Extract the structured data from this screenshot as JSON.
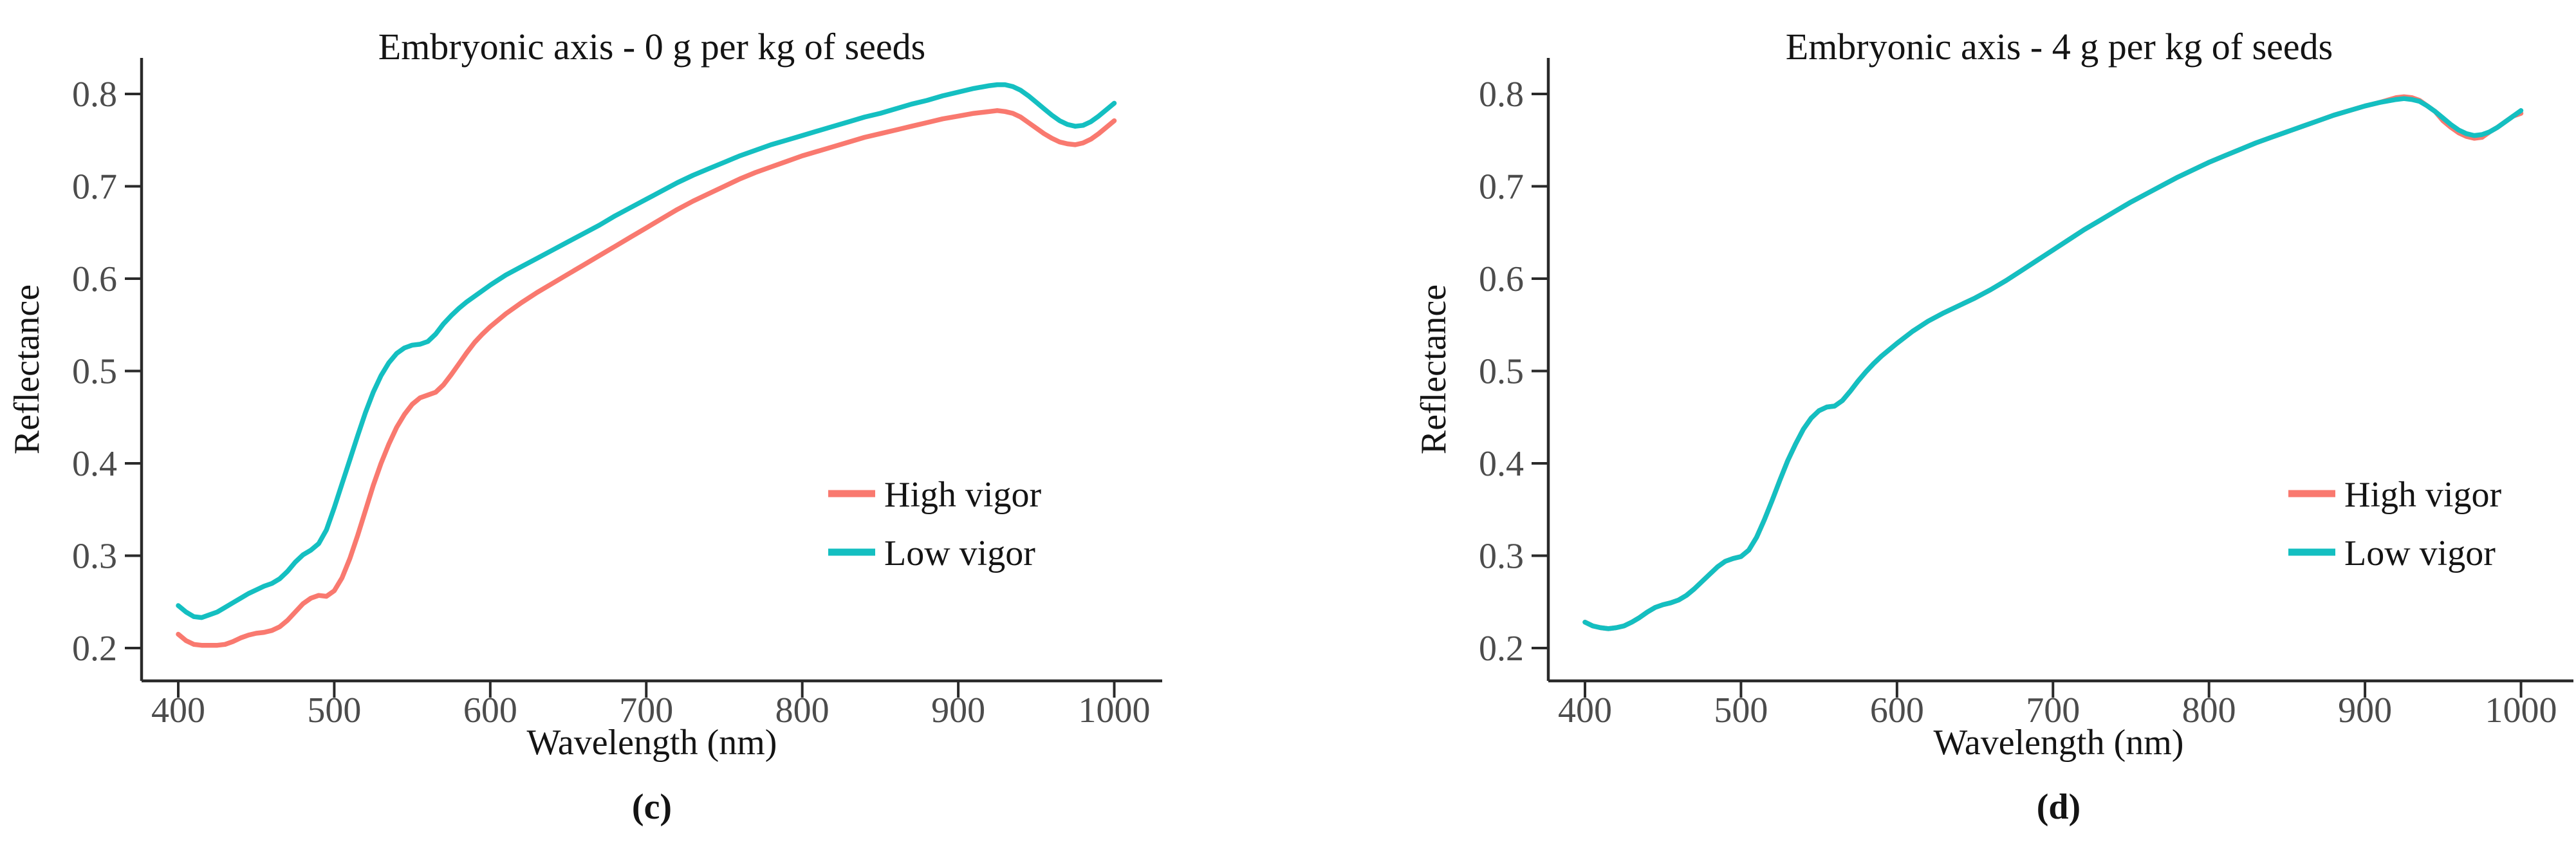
{
  "figure": {
    "background": "#ffffff",
    "text_color": "#141414",
    "tick_text_color": "#4c4c4c",
    "axis_color": "#2a2a2a"
  },
  "chart_data": [
    {
      "type": "line",
      "title": "Embryonic axis - 0 g per kg of seeds",
      "panel_label": "(c)",
      "xlabel": "Wavelength (nm)",
      "ylabel": "Reflectance",
      "xlim": [
        377,
        1030
      ],
      "ylim": [
        0.165,
        0.836
      ],
      "x_ticks": [
        400,
        500,
        600,
        700,
        800,
        900,
        1000
      ],
      "y_ticks": [
        0.2,
        0.3,
        0.4,
        0.5,
        0.6,
        0.7,
        0.8
      ],
      "grid": "off",
      "legend_position": "inside-right-middle",
      "x": [
        400,
        405,
        410,
        415,
        420,
        425,
        430,
        435,
        440,
        445,
        450,
        455,
        460,
        465,
        470,
        475,
        480,
        485,
        490,
        495,
        500,
        505,
        510,
        515,
        520,
        525,
        530,
        535,
        540,
        545,
        550,
        555,
        560,
        565,
        570,
        575,
        580,
        585,
        590,
        595,
        600,
        610,
        620,
        630,
        640,
        650,
        660,
        670,
        680,
        690,
        700,
        710,
        720,
        730,
        740,
        750,
        760,
        770,
        780,
        790,
        800,
        810,
        820,
        830,
        840,
        850,
        860,
        870,
        880,
        890,
        900,
        910,
        920,
        925,
        930,
        935,
        940,
        945,
        950,
        955,
        960,
        965,
        970,
        975,
        980,
        985,
        990,
        995,
        1000
      ],
      "series": [
        {
          "name": "High vigor",
          "color": "#F9796F",
          "values": [
            0.215,
            0.208,
            0.204,
            0.203,
            0.203,
            0.203,
            0.204,
            0.207,
            0.211,
            0.214,
            0.216,
            0.217,
            0.219,
            0.223,
            0.23,
            0.239,
            0.248,
            0.254,
            0.257,
            0.256,
            0.262,
            0.276,
            0.297,
            0.322,
            0.349,
            0.376,
            0.4,
            0.421,
            0.439,
            0.453,
            0.464,
            0.471,
            0.474,
            0.477,
            0.485,
            0.496,
            0.508,
            0.52,
            0.531,
            0.54,
            0.548,
            0.562,
            0.574,
            0.585,
            0.595,
            0.605,
            0.615,
            0.625,
            0.635,
            0.645,
            0.655,
            0.665,
            0.675,
            0.684,
            0.692,
            0.7,
            0.708,
            0.715,
            0.721,
            0.727,
            0.733,
            0.738,
            0.743,
            0.748,
            0.753,
            0.757,
            0.761,
            0.765,
            0.769,
            0.773,
            0.776,
            0.779,
            0.781,
            0.782,
            0.781,
            0.779,
            0.775,
            0.769,
            0.763,
            0.757,
            0.752,
            0.748,
            0.746,
            0.745,
            0.747,
            0.751,
            0.757,
            0.764,
            0.771
          ]
        },
        {
          "name": "Low vigor",
          "color": "#14BFC1",
          "values": [
            0.246,
            0.239,
            0.234,
            0.233,
            0.236,
            0.239,
            0.244,
            0.249,
            0.254,
            0.259,
            0.263,
            0.267,
            0.27,
            0.275,
            0.283,
            0.293,
            0.301,
            0.306,
            0.313,
            0.328,
            0.352,
            0.378,
            0.404,
            0.43,
            0.455,
            0.477,
            0.495,
            0.509,
            0.519,
            0.525,
            0.528,
            0.529,
            0.532,
            0.54,
            0.551,
            0.56,
            0.568,
            0.575,
            0.581,
            0.587,
            0.593,
            0.604,
            0.613,
            0.622,
            0.631,
            0.64,
            0.649,
            0.658,
            0.668,
            0.677,
            0.686,
            0.695,
            0.704,
            0.712,
            0.719,
            0.726,
            0.733,
            0.739,
            0.745,
            0.75,
            0.755,
            0.76,
            0.765,
            0.77,
            0.775,
            0.779,
            0.784,
            0.789,
            0.793,
            0.798,
            0.802,
            0.806,
            0.809,
            0.81,
            0.81,
            0.808,
            0.804,
            0.798,
            0.791,
            0.784,
            0.777,
            0.771,
            0.767,
            0.765,
            0.766,
            0.77,
            0.776,
            0.783,
            0.79
          ]
        }
      ]
    },
    {
      "type": "line",
      "title": "Embryonic axis - 4 g per kg of seeds",
      "panel_label": "(d)",
      "xlabel": "Wavelength (nm)",
      "ylabel": "Reflectance",
      "xlim": [
        377,
        1030
      ],
      "ylim": [
        0.165,
        0.836
      ],
      "x_ticks": [
        400,
        500,
        600,
        700,
        800,
        900,
        1000
      ],
      "y_ticks": [
        0.2,
        0.3,
        0.4,
        0.5,
        0.6,
        0.7,
        0.8
      ],
      "grid": "off",
      "legend_position": "inside-right-middle",
      "x": [
        400,
        405,
        410,
        415,
        420,
        425,
        430,
        435,
        440,
        445,
        450,
        455,
        460,
        465,
        470,
        475,
        480,
        485,
        490,
        495,
        500,
        505,
        510,
        515,
        520,
        525,
        530,
        535,
        540,
        545,
        550,
        555,
        560,
        565,
        570,
        575,
        580,
        585,
        590,
        595,
        600,
        610,
        620,
        630,
        640,
        650,
        660,
        670,
        680,
        690,
        700,
        710,
        720,
        730,
        740,
        750,
        760,
        770,
        780,
        790,
        800,
        810,
        820,
        830,
        840,
        850,
        860,
        870,
        880,
        890,
        900,
        910,
        920,
        925,
        930,
        935,
        940,
        945,
        950,
        955,
        960,
        965,
        970,
        975,
        980,
        985,
        990,
        995,
        1000
      ],
      "series": [
        {
          "name": "High vigor",
          "color": "#F9796F",
          "values": [
            0.228,
            0.224,
            0.222,
            0.221,
            0.222,
            0.224,
            0.228,
            0.233,
            0.239,
            0.244,
            0.247,
            0.249,
            0.252,
            0.257,
            0.264,
            0.272,
            0.28,
            0.288,
            0.294,
            0.297,
            0.299,
            0.306,
            0.32,
            0.339,
            0.36,
            0.382,
            0.403,
            0.421,
            0.437,
            0.449,
            0.457,
            0.461,
            0.462,
            0.468,
            0.478,
            0.489,
            0.499,
            0.508,
            0.516,
            0.523,
            0.53,
            0.543,
            0.554,
            0.563,
            0.571,
            0.579,
            0.588,
            0.598,
            0.609,
            0.62,
            0.631,
            0.642,
            0.653,
            0.663,
            0.673,
            0.683,
            0.692,
            0.701,
            0.71,
            0.718,
            0.726,
            0.733,
            0.74,
            0.747,
            0.753,
            0.759,
            0.765,
            0.771,
            0.777,
            0.782,
            0.787,
            0.791,
            0.796,
            0.797,
            0.796,
            0.793,
            0.787,
            0.781,
            0.771,
            0.764,
            0.758,
            0.754,
            0.752,
            0.753,
            0.759,
            0.764,
            0.77,
            0.776,
            0.779
          ]
        },
        {
          "name": "Low vigor",
          "color": "#14BFC1",
          "values": [
            0.228,
            0.224,
            0.222,
            0.221,
            0.222,
            0.224,
            0.228,
            0.233,
            0.239,
            0.244,
            0.247,
            0.249,
            0.252,
            0.257,
            0.264,
            0.272,
            0.28,
            0.288,
            0.294,
            0.297,
            0.299,
            0.306,
            0.32,
            0.339,
            0.36,
            0.382,
            0.403,
            0.421,
            0.437,
            0.449,
            0.457,
            0.461,
            0.462,
            0.468,
            0.478,
            0.489,
            0.499,
            0.508,
            0.516,
            0.523,
            0.53,
            0.543,
            0.554,
            0.563,
            0.571,
            0.579,
            0.588,
            0.598,
            0.609,
            0.62,
            0.631,
            0.642,
            0.653,
            0.663,
            0.673,
            0.683,
            0.692,
            0.701,
            0.71,
            0.718,
            0.726,
            0.733,
            0.74,
            0.747,
            0.753,
            0.759,
            0.765,
            0.771,
            0.777,
            0.782,
            0.787,
            0.791,
            0.794,
            0.795,
            0.794,
            0.792,
            0.787,
            0.781,
            0.774,
            0.767,
            0.761,
            0.757,
            0.755,
            0.756,
            0.759,
            0.764,
            0.77,
            0.776,
            0.782
          ]
        }
      ]
    }
  ]
}
